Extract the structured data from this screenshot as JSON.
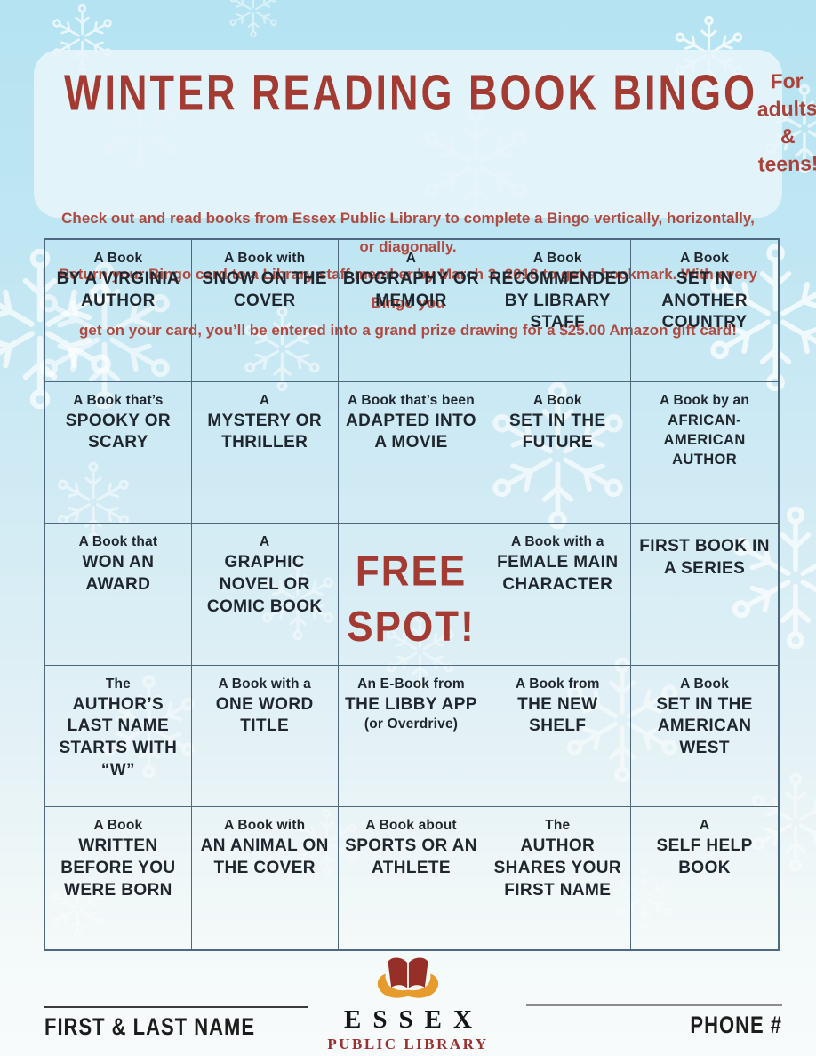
{
  "header": {
    "title": "WINTER READING BOOK BINGO",
    "audience_line1": "For adults",
    "audience_line2": "& teens!",
    "description_line1": "Check out and read books from Essex Public Library to complete a Bingo vertically, horizontally, or diagonally.",
    "description_line2": "Return your Bingo card to a Library staff member by March 3, 2018 to get a bookmark. With every Bingo you",
    "description_line3": "get on your card, you’ll be entered into a grand prize drawing for a $25.00 Amazon gift card!"
  },
  "grid": {
    "rows": [
      [
        {
          "lead": "A Book",
          "main": "BY A VIRGINIA AUTHOR"
        },
        {
          "lead": "A Book with",
          "main": "SNOW ON THE COVER"
        },
        {
          "lead": "A",
          "main": "BIOGRAPHY OR MEMOIR"
        },
        {
          "lead": "A Book",
          "main": "RECOMMENDED BY LIBRARY STAFF"
        },
        {
          "lead": "A Book",
          "main": "SET IN ANOTHER COUNTRY"
        }
      ],
      [
        {
          "lead": "A Book that’s",
          "main": "SPOOKY OR SCARY"
        },
        {
          "lead": "A",
          "main": "MYSTERY OR THRILLER"
        },
        {
          "lead": "A Book that’s been",
          "main": "ADAPTED INTO A MOVIE"
        },
        {
          "lead": "A Book",
          "main": "SET IN THE FUTURE"
        },
        {
          "lead": "A Book by an",
          "main": "AFRICAN-AMERICAN AUTHOR"
        }
      ],
      [
        {
          "lead": "A Book that",
          "main": "WON AN AWARD"
        },
        {
          "lead": "A",
          "main": "GRAPHIC NOVEL OR COMIC BOOK"
        },
        {
          "free": true,
          "main": "FREE SPOT!"
        },
        {
          "lead": "A Book with a",
          "main": "FEMALE MAIN CHARACTER"
        },
        {
          "lead": "",
          "main": "FIRST BOOK IN A SERIES"
        }
      ],
      [
        {
          "lead": "The",
          "main": "AUTHOR’S LAST NAME STARTS WITH “W”"
        },
        {
          "lead": "A Book with a",
          "main": "ONE WORD TITLE"
        },
        {
          "lead": "An E-Book from",
          "main": "THE LIBBY APP",
          "sub": "(or Overdrive)"
        },
        {
          "lead": "A Book from",
          "main": "THE NEW SHELF"
        },
        {
          "lead": "A Book",
          "main": "SET IN THE AMERICAN WEST"
        }
      ],
      [
        {
          "lead": "A Book",
          "main": "WRITTEN BEFORE YOU WERE BORN"
        },
        {
          "lead": "A Book with",
          "main": "AN ANIMAL ON THE COVER"
        },
        {
          "lead": "A Book about",
          "main": "SPORTS OR AN ATHLETE"
        },
        {
          "lead": "The",
          "main": "AUTHOR SHARES YOUR FIRST NAME"
        },
        {
          "lead": "A",
          "main": "SELF HELP BOOK"
        }
      ]
    ]
  },
  "footer": {
    "name_label": "FIRST & LAST NAME",
    "phone_label": "PHONE #",
    "logo_name": "ESSEX",
    "logo_subtitle": "PUBLIC LIBRARY"
  },
  "icons": {
    "background_decoration": "snowflake-icon",
    "logo": "open-book-icon"
  },
  "colors": {
    "accent_red": "#a33b33",
    "description_red": "#b04a40",
    "cell_text": "#20262d",
    "grid_border": "#4e697e",
    "background_top": "#b5e3f2",
    "background_bottom": "#f8fbfb",
    "header_panel": "#e8f5fb",
    "logo_gold": "#e89b2d",
    "logo_page_red": "#962f27",
    "logo_library_red": "#9c2f2f"
  }
}
